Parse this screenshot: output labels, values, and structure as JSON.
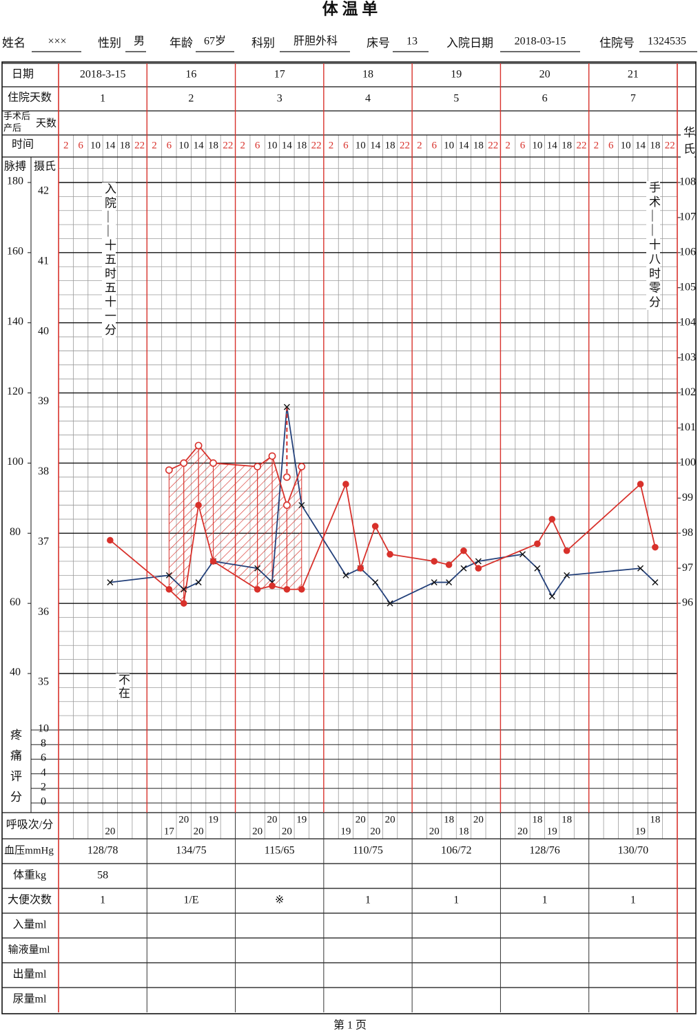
{
  "title": "体 温 单",
  "header": {
    "fields": [
      {
        "label": "姓名",
        "value": "×××"
      },
      {
        "label": "性别",
        "value": "男"
      },
      {
        "label": "年龄",
        "value": "67岁"
      },
      {
        "label": "科别",
        "value": "肝胆外科"
      },
      {
        "label": "床号",
        "value": 13
      },
      {
        "label": "入院日期",
        "value": "2018-03-15"
      },
      {
        "label": "住院号",
        "value": 1324535
      }
    ]
  },
  "row_labels": {
    "date": "日期",
    "hospital_day": "住院天数",
    "post_op_top": "手术后",
    "post_op_bottom": "产后",
    "post_op_days": "天数",
    "time": "时间",
    "respiration": "呼吸次/分",
    "blood_pressure": "血压mmHg",
    "weight": "体重kg",
    "stool": "大便次数",
    "intake": "入量ml",
    "infusion": "输液量ml",
    "output": "出量ml",
    "urine": "尿量ml"
  },
  "days": [
    {
      "date": "2018-3-15",
      "hospital_day": 1,
      "blood_pressure": "128/78",
      "weight": 58,
      "stool": 1
    },
    {
      "date": 16,
      "hospital_day": 2,
      "blood_pressure": "134/75",
      "stool": "1/E"
    },
    {
      "date": 17,
      "hospital_day": 3,
      "blood_pressure": "115/65",
      "stool": "※"
    },
    {
      "date": 18,
      "hospital_day": 4,
      "blood_pressure": "110/75",
      "stool": 1
    },
    {
      "date": 19,
      "hospital_day": 5,
      "blood_pressure": "106/72",
      "stool": 1
    },
    {
      "date": 20,
      "hospital_day": 6,
      "blood_pressure": "128/76",
      "stool": 1
    },
    {
      "date": 21,
      "hospital_day": 7,
      "blood_pressure": "130/70",
      "stool": 1
    }
  ],
  "chart_data": {
    "type": "line",
    "categories": [
      2,
      6,
      10,
      14,
      18,
      22,
      2,
      6,
      10,
      14,
      18,
      22,
      2,
      6,
      10,
      14,
      18,
      22,
      2,
      6,
      10,
      14,
      18,
      22,
      2,
      6,
      10,
      14,
      18,
      22,
      2,
      6,
      10,
      14,
      18,
      22,
      2,
      6,
      10,
      14,
      18,
      22
    ],
    "axis_titles": {
      "pulse": "脉搏",
      "celsius": "摄氏",
      "fahrenheit": "华氏",
      "pain": "疼痛评分"
    },
    "ylim": [
      35,
      42
    ],
    "yticks": [
      35,
      36,
      37,
      38,
      39,
      40,
      41,
      42
    ],
    "pulse_lim": [
      40,
      180
    ],
    "pulse_ticks": [
      40,
      60,
      80,
      100,
      120,
      140,
      160,
      180
    ],
    "y2lim": [
      96,
      108
    ],
    "y2ticks": [
      96,
      97,
      98,
      99,
      100,
      101,
      102,
      103,
      104,
      105,
      106,
      107,
      108
    ],
    "pain_lim": [
      0,
      10
    ],
    "pain_ticks": [
      0,
      2,
      4,
      6,
      8,
      10
    ],
    "grid": true,
    "series": [
      {
        "marker": "x",
        "color": "#23407a",
        "axis": "y",
        "line": true,
        "values": [
          null,
          null,
          null,
          36.3,
          null,
          null,
          null,
          36.4,
          36.2,
          36.3,
          36.6,
          null,
          null,
          36.5,
          36.3,
          38.8,
          37.4,
          null,
          null,
          36.4,
          36.5,
          36.3,
          36.0,
          null,
          null,
          36.3,
          36.3,
          36.5,
          36.6,
          null,
          null,
          36.7,
          36.5,
          36.1,
          36.4,
          null,
          null,
          null,
          null,
          36.5,
          36.3,
          null
        ]
      },
      {
        "marker": "dot",
        "color": "#d8312b",
        "axis": "pulse",
        "line": true,
        "values": [
          null,
          null,
          null,
          78,
          null,
          null,
          null,
          64,
          60,
          88,
          72,
          null,
          null,
          64,
          65,
          64,
          64,
          null,
          null,
          94,
          70,
          82,
          74,
          null,
          null,
          72,
          71,
          75,
          70,
          null,
          null,
          null,
          77,
          84,
          75,
          null,
          null,
          null,
          null,
          94,
          76,
          null
        ]
      },
      {
        "marker": "circle",
        "color": "#d8312b",
        "axis": "pulse",
        "line": true,
        "values": [
          null,
          null,
          null,
          null,
          null,
          null,
          null,
          98,
          100,
          105,
          100,
          null,
          null,
          99,
          102,
          88,
          99,
          null,
          null,
          null,
          null,
          null,
          null,
          null,
          null,
          null,
          null,
          null,
          null,
          null,
          null,
          null,
          null,
          null,
          null,
          null,
          null,
          null,
          null,
          null,
          null,
          null
        ]
      },
      {
        "marker": "circle",
        "color": "#d8312b",
        "axis": "y",
        "line": false,
        "values": [
          null,
          null,
          null,
          null,
          null,
          null,
          null,
          null,
          null,
          null,
          null,
          null,
          null,
          null,
          null,
          37.8,
          null,
          null,
          null,
          null,
          null,
          null,
          null,
          null,
          null,
          null,
          null,
          null,
          null,
          null,
          null,
          null,
          null,
          null,
          null,
          null,
          null,
          null,
          null,
          null,
          null,
          null
        ]
      }
    ],
    "respiration": [
      null,
      null,
      null,
      20,
      null,
      null,
      null,
      17,
      20,
      20,
      19,
      null,
      null,
      20,
      20,
      20,
      19,
      null,
      null,
      19,
      20,
      20,
      20,
      null,
      null,
      20,
      18,
      18,
      20,
      null,
      null,
      20,
      18,
      19,
      18,
      null,
      null,
      null,
      null,
      19,
      18,
      null
    ],
    "annotations": [
      "入院——十五时五十一分",
      "手术——十八时零分",
      "不在"
    ]
  },
  "footer": "第 1 页"
}
